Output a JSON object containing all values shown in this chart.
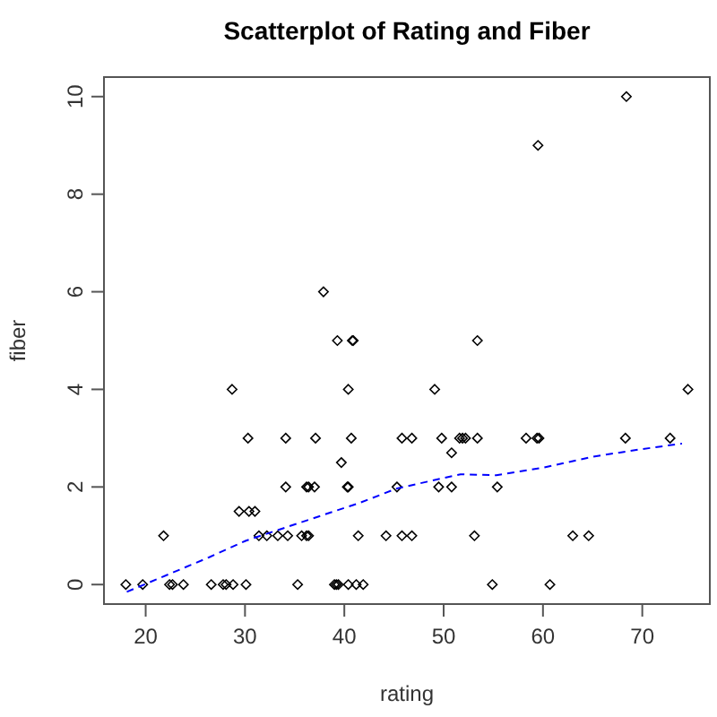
{
  "chart_data": {
    "type": "scatter",
    "title": "Scatterplot of Rating and Fiber",
    "xlabel": "rating",
    "ylabel": "fiber",
    "xlim": [
      15.8,
      76.8
    ],
    "ylim": [
      -0.4,
      10.4
    ],
    "xticks": [
      20,
      30,
      40,
      50,
      60,
      70
    ],
    "yticks": [
      0,
      2,
      4,
      6,
      8,
      10
    ],
    "series": [
      {
        "marker": "diamond",
        "color": "#000000",
        "x": [
          18.0,
          19.7,
          22.4,
          22.7,
          23.8,
          26.6,
          27.8,
          28.1,
          28.8,
          30.1,
          35.3,
          39.0,
          39.2,
          39.4,
          40.4,
          41.2,
          41.9,
          54.9,
          60.7,
          21.8,
          31.4,
          32.2,
          33.3,
          34.3,
          35.7,
          36.2,
          36.4,
          41.4,
          44.2,
          45.8,
          46.8,
          53.1,
          63.0,
          64.6,
          29.4,
          30.4,
          31.0,
          34.1,
          36.2,
          36.4,
          37.0,
          40.3,
          40.4,
          45.3,
          49.5,
          50.8,
          55.4,
          39.7,
          50.8,
          30.3,
          34.1,
          37.1,
          40.7,
          45.8,
          46.8,
          49.8,
          51.6,
          51.9,
          52.2,
          53.4,
          58.3,
          59.4,
          59.6,
          68.3,
          72.8,
          28.7,
          40.4,
          49.1,
          74.6,
          39.3,
          40.8,
          40.9,
          53.4,
          37.9,
          59.5,
          68.4
        ],
        "values": [
          0,
          0,
          0,
          0,
          0,
          0,
          0,
          0,
          0,
          0,
          0,
          0,
          0,
          0,
          0,
          0,
          0,
          0,
          0,
          1,
          1,
          1,
          1,
          1,
          1,
          1,
          1,
          1,
          1,
          1,
          1,
          1,
          1,
          1,
          1.5,
          1.5,
          1.5,
          2,
          2,
          2,
          2,
          2,
          2,
          2,
          2,
          2,
          2,
          2.5,
          2.7,
          3,
          3,
          3,
          3,
          3,
          3,
          3,
          3,
          3,
          3,
          3,
          3,
          3,
          3,
          3,
          3,
          4,
          4,
          4,
          4,
          5,
          5,
          5,
          5,
          6,
          9,
          10
        ]
      },
      {
        "type": "line",
        "color": "#0000ff",
        "line_style": "dashed",
        "x": [
          18.1,
          26.4,
          30.1,
          40.0,
          41.5,
          45.3,
          51.7,
          55.3,
          60.1,
          65.0,
          69.8,
          74.0
        ],
        "values": [
          -0.15,
          0.56,
          0.9,
          1.57,
          1.67,
          1.97,
          2.26,
          2.24,
          2.4,
          2.62,
          2.77,
          2.89
        ]
      }
    ]
  }
}
